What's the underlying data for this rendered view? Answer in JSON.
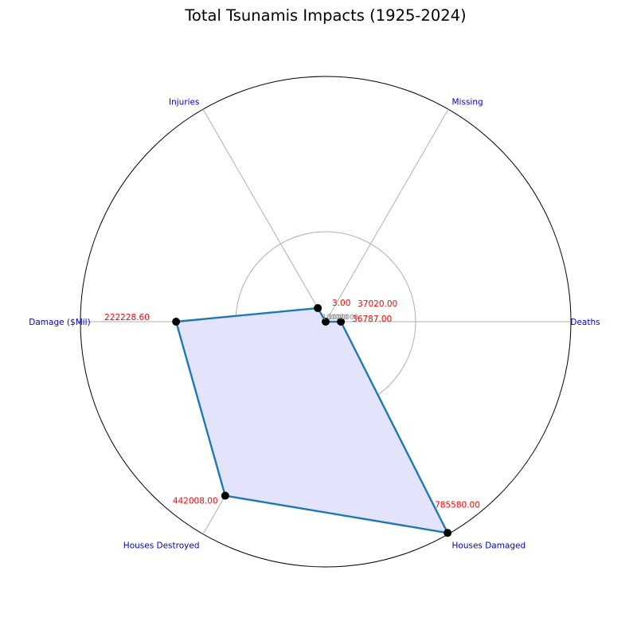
{
  "chart_data": {
    "type": "radar",
    "title": "Total Tsunamis Impacts (1925-2024)",
    "categories": [
      "Deaths",
      "Missing",
      "Injuries",
      "Damage ($Mil)",
      "Houses Destroyed",
      "Houses Damaged"
    ],
    "values": [
      36787.0,
      3.0,
      37020.0,
      222228.6,
      442008.0,
      785580.0
    ],
    "value_labels": [
      "36787.00",
      "3.00",
      "37020.00",
      "222228.60",
      "442008.00",
      "785580.00"
    ],
    "radial_ticks": [
      100000,
      1000000
    ],
    "radial_tick_labels": [
      "100000",
      "1000000"
    ],
    "scale": "log",
    "rmin": 30000,
    "rmax": 800000,
    "series": [
      {
        "values": [
          36787.0,
          3.0,
          37020.0,
          222228.6,
          442008.0,
          785580.0
        ]
      }
    ],
    "colors": {
      "line": "#1f77b4",
      "fill": "#e3e3fc",
      "markers": "#000000",
      "value_labels": "#ff0000",
      "axis_labels": "#0000cc",
      "grid": "#b0b0b0"
    },
    "grid": true,
    "legend": "none"
  }
}
